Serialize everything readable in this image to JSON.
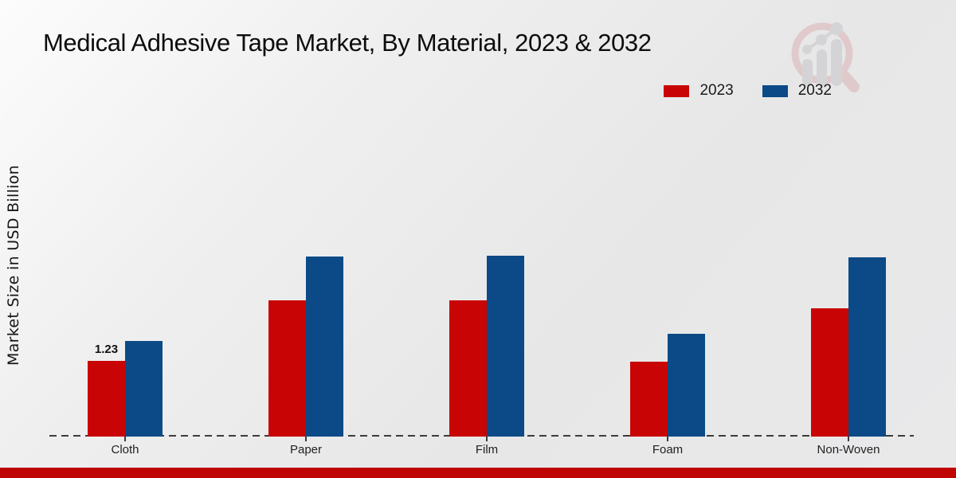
{
  "header": {
    "title": "Medical Adhesive Tape Market, By Material, 2023 & 2032"
  },
  "watermark": {
    "icon": "magnifier-bar-chart-logo"
  },
  "legend": {
    "items": [
      {
        "label": "2023",
        "color": "#c80404"
      },
      {
        "label": "2032",
        "color": "#0b4a86"
      }
    ]
  },
  "colors": {
    "series_2023": "#c80404",
    "series_2032": "#0b4a86",
    "footer_bar": "#bf0404",
    "axis": "#3d3d3d"
  },
  "y_axis": {
    "label": "Market Size in USD Billion"
  },
  "chart_data": {
    "type": "bar",
    "title": "Medical Adhesive Tape Market, By Material, 2023 & 2032",
    "categories": [
      "Cloth",
      "Paper",
      "Film",
      "Foam",
      "Non-Woven"
    ],
    "series": [
      {
        "name": "2023",
        "color": "#c80404",
        "values": [
          1.23,
          2.21,
          2.21,
          1.22,
          2.08
        ]
      },
      {
        "name": "2032",
        "color": "#0b4a86",
        "values": [
          1.55,
          2.93,
          2.94,
          1.67,
          2.91
        ]
      }
    ],
    "xlabel": "",
    "ylabel": "Market Size in USD Billion",
    "ylim": [
      0,
      3.6
    ],
    "grid": false,
    "legend_position": "top-right",
    "data_labels": [
      {
        "category": "Cloth",
        "series": "2023",
        "text": "1.23"
      }
    ]
  }
}
